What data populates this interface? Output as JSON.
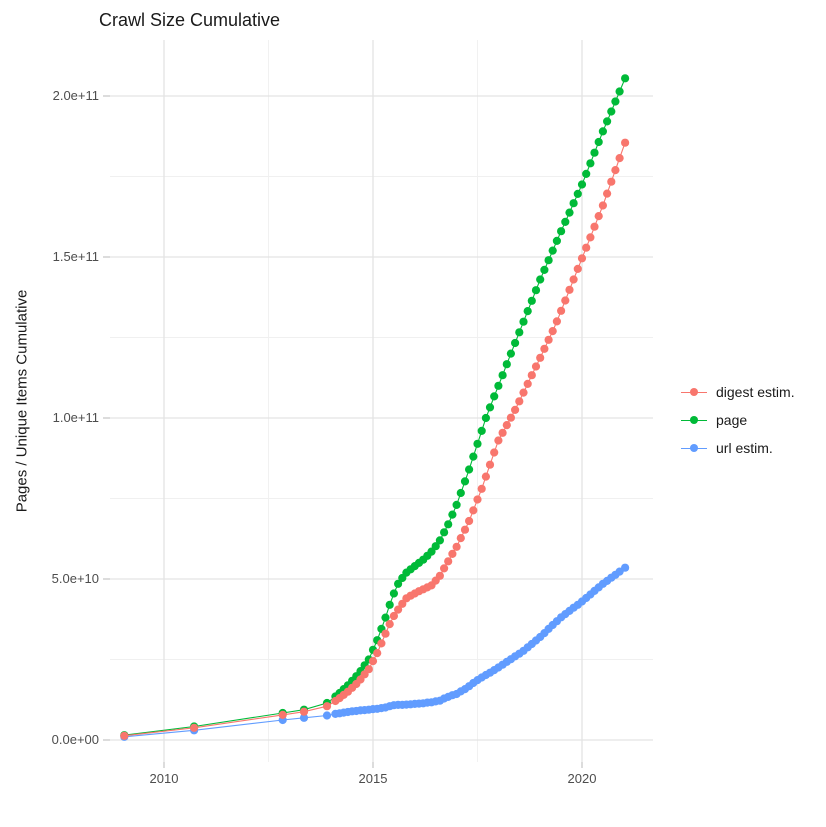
{
  "page": {
    "background": "#ffffff"
  },
  "chart_data": {
    "type": "scatter",
    "title": "Crawl Size Cumulative",
    "xlabel": "",
    "ylabel": "Pages / Unique Items Cumulative",
    "grid": "on (major + minor, light gray on white)",
    "legend_position": "right-center",
    "values_unit_note": "point values are in billions (1e9); y tick labels use scientific notation",
    "x_axis": {
      "range_years": [
        2008.7,
        2021.7
      ],
      "ticks": [
        {
          "v": 2010,
          "label": "2010"
        },
        {
          "v": 2015,
          "label": "2015"
        },
        {
          "v": 2020,
          "label": "2020"
        }
      ],
      "minor": [
        2012.5,
        2017.5
      ]
    },
    "y_axis": {
      "range_billions": [
        -7,
        217
      ],
      "ticks": [
        {
          "v": 0,
          "label": "0.0e+00"
        },
        {
          "v": 50,
          "label": "5.0e+10"
        },
        {
          "v": 100,
          "label": "1.0e+11"
        },
        {
          "v": 150,
          "label": "1.5e+11"
        },
        {
          "v": 200,
          "label": "2.0e+11"
        }
      ],
      "minor": [
        25,
        75,
        125,
        175
      ]
    },
    "colors": {
      "digest_estim": "#F8766D",
      "page": "#00BA38",
      "url_estim": "#619CFF"
    },
    "series": [
      {
        "name": "digest estim.",
        "color": "#F8766D",
        "points": [
          [
            2009.05,
            1.3
          ],
          [
            2010.72,
            3.8
          ],
          [
            2012.84,
            7.8
          ],
          [
            2013.35,
            8.8
          ],
          [
            2013.9,
            10.5
          ],
          [
            2014.1,
            12.1
          ],
          [
            2014.2,
            13
          ],
          [
            2014.3,
            14
          ],
          [
            2014.4,
            15
          ],
          [
            2014.5,
            16.2
          ],
          [
            2014.6,
            17.4
          ],
          [
            2014.7,
            18.8
          ],
          [
            2014.8,
            20.4
          ],
          [
            2014.9,
            22
          ],
          [
            2015.0,
            24.5
          ],
          [
            2015.1,
            27
          ],
          [
            2015.2,
            30
          ],
          [
            2015.3,
            33
          ],
          [
            2015.4,
            36
          ],
          [
            2015.5,
            38.5
          ],
          [
            2015.6,
            40.5
          ],
          [
            2015.7,
            42.3
          ],
          [
            2015.8,
            44
          ],
          [
            2015.9,
            44.8
          ],
          [
            2016.0,
            45.5
          ],
          [
            2016.1,
            46.2
          ],
          [
            2016.2,
            46.8
          ],
          [
            2016.3,
            47.4
          ],
          [
            2016.4,
            48
          ],
          [
            2016.5,
            49.5
          ],
          [
            2016.6,
            51
          ],
          [
            2016.7,
            53.3
          ],
          [
            2016.8,
            55.5
          ],
          [
            2016.9,
            57.8
          ],
          [
            2017.0,
            60
          ],
          [
            2017.1,
            62.7
          ],
          [
            2017.2,
            65.3
          ],
          [
            2017.3,
            68
          ],
          [
            2017.4,
            71.3
          ],
          [
            2017.5,
            74.7
          ],
          [
            2017.6,
            78
          ],
          [
            2017.7,
            81.8
          ],
          [
            2017.8,
            85.5
          ],
          [
            2017.9,
            89.3
          ],
          [
            2018.0,
            93
          ],
          [
            2018.1,
            95.4
          ],
          [
            2018.2,
            97.8
          ],
          [
            2018.3,
            100.1
          ],
          [
            2018.4,
            102.5
          ],
          [
            2018.5,
            105.2
          ],
          [
            2018.6,
            107.9
          ],
          [
            2018.7,
            110.6
          ],
          [
            2018.8,
            113.3
          ],
          [
            2018.9,
            116
          ],
          [
            2019.0,
            118.7
          ],
          [
            2019.1,
            121.5
          ],
          [
            2019.2,
            124.3
          ],
          [
            2019.3,
            127
          ],
          [
            2019.4,
            130
          ],
          [
            2019.5,
            133.3
          ],
          [
            2019.6,
            136.5
          ],
          [
            2019.7,
            139.8
          ],
          [
            2019.8,
            143
          ],
          [
            2019.9,
            146.3
          ],
          [
            2020.0,
            149.6
          ],
          [
            2020.1,
            152.9
          ],
          [
            2020.2,
            156.1
          ],
          [
            2020.3,
            159.4
          ],
          [
            2020.4,
            162.7
          ],
          [
            2020.5,
            166
          ],
          [
            2020.6,
            169.7
          ],
          [
            2020.7,
            173.4
          ],
          [
            2020.8,
            177
          ],
          [
            2020.9,
            180.7
          ],
          [
            2021.03,
            185.5
          ]
        ]
      },
      {
        "name": "page",
        "color": "#00BA38",
        "points": [
          [
            2009.05,
            1.5
          ],
          [
            2010.72,
            4.2
          ],
          [
            2012.84,
            8.4
          ],
          [
            2013.35,
            9.4
          ],
          [
            2013.9,
            11.5
          ],
          [
            2014.1,
            13.5
          ],
          [
            2014.2,
            14.6
          ],
          [
            2014.3,
            15.8
          ],
          [
            2014.4,
            17
          ],
          [
            2014.5,
            18.4
          ],
          [
            2014.6,
            19.8
          ],
          [
            2014.7,
            21.4
          ],
          [
            2014.8,
            23.2
          ],
          [
            2014.9,
            25
          ],
          [
            2015.0,
            28
          ],
          [
            2015.1,
            31
          ],
          [
            2015.2,
            34.5
          ],
          [
            2015.3,
            38
          ],
          [
            2015.4,
            42
          ],
          [
            2015.5,
            45.5
          ],
          [
            2015.6,
            48.5
          ],
          [
            2015.7,
            50.3
          ],
          [
            2015.8,
            52
          ],
          [
            2015.9,
            53
          ],
          [
            2016.0,
            54
          ],
          [
            2016.1,
            55
          ],
          [
            2016.2,
            56
          ],
          [
            2016.3,
            57.2
          ],
          [
            2016.4,
            58.5
          ],
          [
            2016.5,
            60.2
          ],
          [
            2016.6,
            62
          ],
          [
            2016.7,
            64.5
          ],
          [
            2016.8,
            67
          ],
          [
            2016.9,
            70
          ],
          [
            2017.0,
            73
          ],
          [
            2017.1,
            76.7
          ],
          [
            2017.2,
            80.3
          ],
          [
            2017.3,
            84
          ],
          [
            2017.4,
            88
          ],
          [
            2017.5,
            92
          ],
          [
            2017.6,
            96
          ],
          [
            2017.7,
            100
          ],
          [
            2017.8,
            103.3
          ],
          [
            2017.9,
            106.7
          ],
          [
            2018.0,
            110
          ],
          [
            2018.1,
            113.3
          ],
          [
            2018.2,
            116.7
          ],
          [
            2018.3,
            120
          ],
          [
            2018.4,
            123.3
          ],
          [
            2018.5,
            126.6
          ],
          [
            2018.6,
            129.9
          ],
          [
            2018.7,
            133.2
          ],
          [
            2018.8,
            136.4
          ],
          [
            2018.9,
            139.7
          ],
          [
            2019.0,
            143
          ],
          [
            2019.1,
            146
          ],
          [
            2019.2,
            149
          ],
          [
            2019.3,
            152
          ],
          [
            2019.4,
            155
          ],
          [
            2019.5,
            158
          ],
          [
            2019.6,
            160.9
          ],
          [
            2019.7,
            163.8
          ],
          [
            2019.8,
            166.7
          ],
          [
            2019.9,
            169.6
          ],
          [
            2020.0,
            172.5
          ],
          [
            2020.1,
            175.8
          ],
          [
            2020.2,
            179.1
          ],
          [
            2020.3,
            182.4
          ],
          [
            2020.4,
            185.7
          ],
          [
            2020.5,
            189
          ],
          [
            2020.6,
            192.1
          ],
          [
            2020.7,
            195.2
          ],
          [
            2020.8,
            198.3
          ],
          [
            2020.9,
            201.4
          ],
          [
            2021.03,
            205.5
          ]
        ]
      },
      {
        "name": "url estim.",
        "color": "#619CFF",
        "points": [
          [
            2009.05,
            1
          ],
          [
            2010.72,
            3
          ],
          [
            2012.84,
            6.2
          ],
          [
            2013.35,
            6.9
          ],
          [
            2013.9,
            7.6
          ],
          [
            2014.1,
            8.1
          ],
          [
            2014.2,
            8.3
          ],
          [
            2014.3,
            8.5
          ],
          [
            2014.4,
            8.7
          ],
          [
            2014.5,
            8.9
          ],
          [
            2014.6,
            9
          ],
          [
            2014.7,
            9.2
          ],
          [
            2014.8,
            9.3
          ],
          [
            2014.9,
            9.4
          ],
          [
            2015.0,
            9.6
          ],
          [
            2015.1,
            9.7
          ],
          [
            2015.2,
            9.9
          ],
          [
            2015.3,
            10.1
          ],
          [
            2015.4,
            10.5
          ],
          [
            2015.5,
            10.8
          ],
          [
            2015.6,
            10.9
          ],
          [
            2015.7,
            10.9
          ],
          [
            2015.8,
            11
          ],
          [
            2015.9,
            11.1
          ],
          [
            2016.0,
            11.2
          ],
          [
            2016.1,
            11.3
          ],
          [
            2016.2,
            11.4
          ],
          [
            2016.3,
            11.6
          ],
          [
            2016.4,
            11.7
          ],
          [
            2016.5,
            12
          ],
          [
            2016.6,
            12.2
          ],
          [
            2016.7,
            12.9
          ],
          [
            2016.8,
            13.4
          ],
          [
            2016.9,
            13.9
          ],
          [
            2017.0,
            14.3
          ],
          [
            2017.1,
            15.1
          ],
          [
            2017.2,
            15.8
          ],
          [
            2017.3,
            16.7
          ],
          [
            2017.4,
            17.7
          ],
          [
            2017.5,
            18.6
          ],
          [
            2017.6,
            19.4
          ],
          [
            2017.7,
            20.2
          ],
          [
            2017.8,
            20.9
          ],
          [
            2017.9,
            21.7
          ],
          [
            2018.0,
            22.5
          ],
          [
            2018.1,
            23.4
          ],
          [
            2018.2,
            24.3
          ],
          [
            2018.3,
            25.1
          ],
          [
            2018.4,
            26
          ],
          [
            2018.5,
            26.8
          ],
          [
            2018.6,
            27.7
          ],
          [
            2018.7,
            28.8
          ],
          [
            2018.8,
            29.8
          ],
          [
            2018.9,
            30.9
          ],
          [
            2019.0,
            32
          ],
          [
            2019.1,
            33.2
          ],
          [
            2019.2,
            34.5
          ],
          [
            2019.3,
            35.7
          ],
          [
            2019.4,
            36.9
          ],
          [
            2019.5,
            38.1
          ],
          [
            2019.6,
            39.1
          ],
          [
            2019.7,
            40.1
          ],
          [
            2019.8,
            41.1
          ],
          [
            2019.9,
            42
          ],
          [
            2020.0,
            43
          ],
          [
            2020.1,
            44.1
          ],
          [
            2020.2,
            45.2
          ],
          [
            2020.3,
            46.3
          ],
          [
            2020.4,
            47.4
          ],
          [
            2020.5,
            48.5
          ],
          [
            2020.6,
            49.4
          ],
          [
            2020.7,
            50.4
          ],
          [
            2020.8,
            51.3
          ],
          [
            2020.9,
            52.3
          ],
          [
            2021.03,
            53.5
          ]
        ]
      }
    ]
  }
}
